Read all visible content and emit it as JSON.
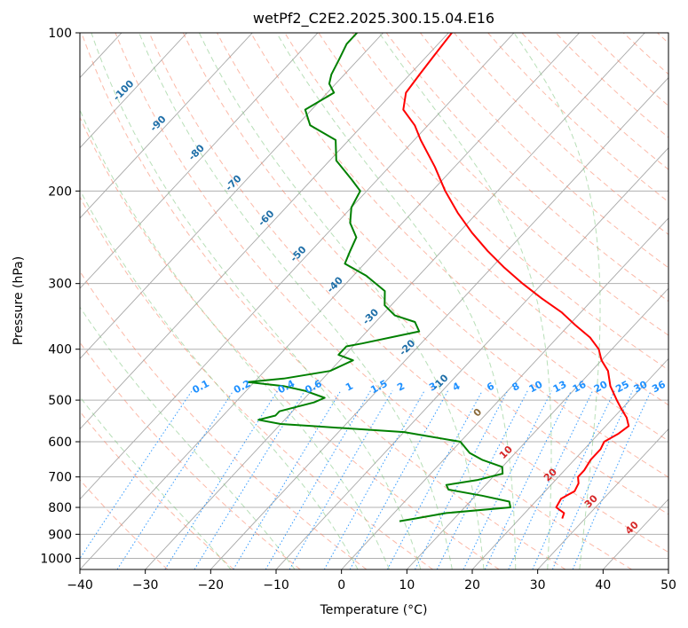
{
  "chart_data": {
    "type": "line",
    "title": "wetPf2_C2E2.2025.300.15.04.E16",
    "xlabel": "Temperature (°C)",
    "ylabel": "Pressure (hPa)",
    "xlim": [
      -40,
      50
    ],
    "ylim": [
      1050,
      100
    ],
    "y_scale": "log",
    "x_ticks": [
      -40,
      -30,
      -20,
      -10,
      0,
      10,
      20,
      30,
      40,
      50
    ],
    "y_ticks": [
      100,
      200,
      300,
      400,
      500,
      600,
      700,
      800,
      900,
      1000
    ],
    "grid": true,
    "skew": "skew-T log-p",
    "series": [
      {
        "role": "temperature",
        "color": "#ff0000",
        "pressure": [
          840,
          820,
          800,
          770,
          745,
          720,
          700,
          680,
          650,
          620,
          600,
          580,
          560,
          540,
          520,
          500,
          470,
          440,
          420,
          400,
          380,
          360,
          340,
          320,
          300,
          280,
          260,
          240,
          220,
          200,
          180,
          160,
          150,
          140,
          130,
          120,
          110,
          100
        ],
        "temperature": [
          26.5,
          26.0,
          24.0,
          23.5,
          24.5,
          24.0,
          23.0,
          23.0,
          22.5,
          22.5,
          22.0,
          23.0,
          23.5,
          22.0,
          20.0,
          18.0,
          15.0,
          12.5,
          10.0,
          8.0,
          5.0,
          1.0,
          -3.0,
          -8.0,
          -13.0,
          -18.0,
          -23.0,
          -28.0,
          -33.0,
          -38.0,
          -43.0,
          -49.0,
          -52.0,
          -56.0,
          -58.0,
          -58.5,
          -59.0,
          -59.5
        ]
      },
      {
        "role": "dewpoint",
        "color": "#008000",
        "pressure": [
          850,
          840,
          820,
          800,
          780,
          760,
          740,
          725,
          710,
          690,
          670,
          650,
          630,
          600,
          575,
          560,
          555,
          545,
          535,
          525,
          515,
          505,
          495,
          480,
          470,
          462,
          455,
          440,
          420,
          410,
          400,
          395,
          390,
          370,
          355,
          345,
          330,
          310,
          290,
          275,
          260,
          245,
          230,
          215,
          200,
          190,
          175,
          160,
          150,
          140,
          130,
          125,
          120,
          112,
          105,
          100
        ],
        "dewpoint": [
          2.0,
          4.0,
          8.0,
          17.0,
          16.0,
          11.0,
          5.0,
          4.0,
          8.0,
          11.0,
          10.0,
          6.0,
          3.0,
          0.0,
          -10.0,
          -25.0,
          -30.0,
          -34.0,
          -32.0,
          -32.0,
          -30.0,
          -28.0,
          -27.0,
          -31.0,
          -35.0,
          -41.0,
          -36.0,
          -30.0,
          -28.0,
          -31.0,
          -31.0,
          -31.0,
          -29.0,
          -22.0,
          -24.0,
          -28.0,
          -31.0,
          -33.0,
          -38.0,
          -43.0,
          -44.0,
          -45.0,
          -48.0,
          -50.0,
          -51.0,
          -54.0,
          -59.0,
          -62.0,
          -68.0,
          -71.0,
          -69.0,
          -71.0,
          -72.0,
          -73.0,
          -74.0,
          -74.0
        ]
      }
    ],
    "dry_adiabat_labels": [
      "-100",
      "-90",
      "-80",
      "-70",
      "-60",
      "-50",
      "-40",
      "-30",
      "-20",
      "-10",
      "0",
      "10",
      "20",
      "30",
      "40"
    ],
    "mixing_ratio_labels": [
      "0.1",
      "0.2",
      "0.4",
      "0.6",
      "1",
      "1.5",
      "2",
      "3",
      "4",
      "6",
      "8",
      "10",
      "13",
      "16",
      "20",
      "25",
      "30",
      "36"
    ]
  },
  "colors": {
    "temperature": "#ff0000",
    "dewpoint": "#008000",
    "dry_adiabat": "#fa8060",
    "moist_adiabat": "#7ec47e",
    "mixing_ratio": "#1e90ff",
    "dry_label": "#1f6fa8",
    "warm_label": "#d62728",
    "grid": "#b0b0b0",
    "isotherm": "#a8a8a8"
  }
}
